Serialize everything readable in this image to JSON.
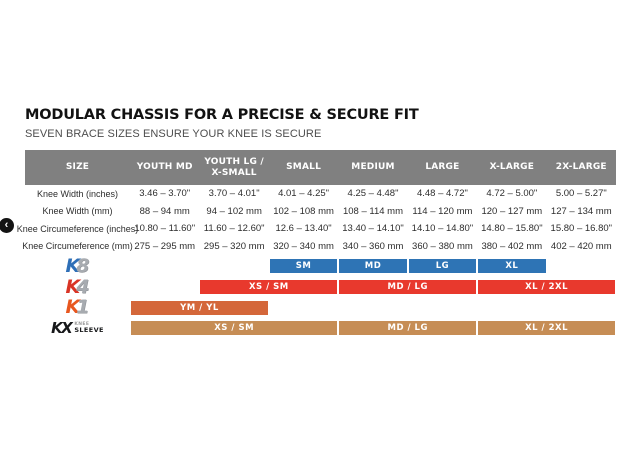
{
  "carousel": {
    "prev_icon": "‹"
  },
  "colors": {
    "table_header_bg": "#808080",
    "k8_bar": "#2e74b5",
    "k4_bar": "#e8392d",
    "k1_bar": "#d4673a",
    "kx_bar": "#c68d55",
    "k8_logo_letter": "#2e6fb7",
    "k4_logo_letter": "#d93425",
    "k1_logo_letter": "#e8571f",
    "logo_digit_silver": "#a7abb0"
  },
  "chart_data": {
    "type": "table",
    "title": "MODULAR CHASSIS FOR A PRECISE & SECURE FIT",
    "subtitle": "SEVEN BRACE SIZES ENSURE YOUR KNEE IS SECURE",
    "columns": [
      "SIZE",
      "YOUTH MD",
      "YOUTH LG / X-SMALL",
      "SMALL",
      "MEDIUM",
      "LARGE",
      "X-LARGE",
      "2X-LARGE"
    ],
    "rows": [
      {
        "label": "Knee Width (inches)",
        "values": [
          "3.46 – 3.70\"",
          "3.70 – 4.01\"",
          "4.01 – 4.25\"",
          "4.25 – 4.48\"",
          "4.48 – 4.72\"",
          "4.72 – 5.00\"",
          "5.00 – 5.27\""
        ]
      },
      {
        "label": "Knee Width (mm)",
        "values": [
          "88 – 94 mm",
          "94 – 102 mm",
          "102 – 108 mm",
          "108 – 114 mm",
          "114 – 120 mm",
          "120 – 127 mm",
          "127 – 134 mm"
        ]
      },
      {
        "label": "Knee Circumeference (inches)",
        "values": [
          "10.80 – 11.60\"",
          "11.60 – 12.60\"",
          "12.6 – 13.40\"",
          "13.40 – 14.10\"",
          "14.10 – 14.80\"",
          "14.80 – 15.80\"",
          "15.80 – 16.80\""
        ]
      },
      {
        "label": "Knee Circumeference (mm)",
        "values": [
          "275 – 295 mm",
          "295 – 320 mm",
          "320 – 340 mm",
          "340 – 360 mm",
          "360 – 380 mm",
          "380 – 402 mm",
          "402 – 420 mm"
        ]
      }
    ],
    "braces": [
      {
        "name": "K8",
        "logo_prefix": "K",
        "logo_digit": "8",
        "bar_color": "#2e74b5",
        "bars": [
          {
            "label": "SM",
            "columns": [
              "SMALL"
            ]
          },
          {
            "label": "MD",
            "columns": [
              "MEDIUM"
            ]
          },
          {
            "label": "LG",
            "columns": [
              "LARGE"
            ]
          },
          {
            "label": "XL",
            "columns": [
              "X-LARGE"
            ]
          }
        ]
      },
      {
        "name": "K4",
        "logo_prefix": "K",
        "logo_digit": "4",
        "bar_color": "#e8392d",
        "bars": [
          {
            "label": "XS / SM",
            "columns": [
              "YOUTH LG / X-SMALL",
              "SMALL"
            ]
          },
          {
            "label": "MD / LG",
            "columns": [
              "MEDIUM",
              "LARGE"
            ]
          },
          {
            "label": "XL / 2XL",
            "columns": [
              "X-LARGE",
              "2X-LARGE"
            ]
          }
        ]
      },
      {
        "name": "K1",
        "logo_prefix": "K",
        "logo_digit": "1",
        "bar_color": "#d4673a",
        "bars": [
          {
            "label": "YM / YL",
            "columns": [
              "YOUTH MD",
              "YOUTH LG / X-SMALL"
            ]
          }
        ]
      },
      {
        "name": "KX SLEEVE",
        "logo_text": "KX",
        "logo_sub_top": "KNEE",
        "logo_sub_bottom": "SLEEVE",
        "bar_color": "#c68d55",
        "bars": [
          {
            "label": "XS / SM",
            "columns": [
              "YOUTH MD",
              "YOUTH LG / X-SMALL",
              "SMALL"
            ]
          },
          {
            "label": "MD / LG",
            "columns": [
              "MEDIUM",
              "LARGE"
            ]
          },
          {
            "label": "XL / 2XL",
            "columns": [
              "X-LARGE",
              "2X-LARGE"
            ]
          }
        ]
      }
    ]
  }
}
